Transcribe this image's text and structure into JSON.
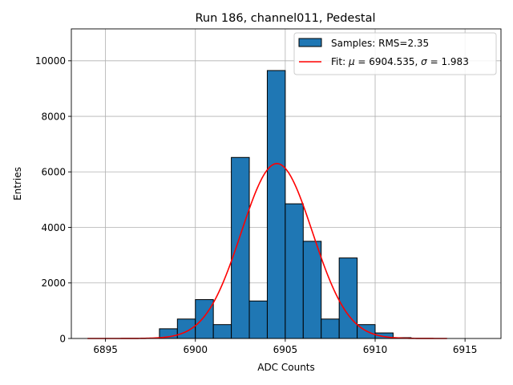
{
  "chart_data": {
    "type": "bar",
    "title": "Run 186, channel011, Pedestal",
    "xlabel": "ADC Counts",
    "ylabel": "Entries",
    "xlim": [
      6893.1,
      6917.0
    ],
    "ylim": [
      0,
      11150
    ],
    "xticks": [
      6895,
      6900,
      6905,
      6910,
      6915
    ],
    "yticks": [
      0,
      2000,
      4000,
      6000,
      8000,
      10000
    ],
    "grid": true,
    "legend_position": "top-right",
    "bin_width": 1,
    "histogram": {
      "name": "Samples: RMS=2.35",
      "color": "#1f77b4",
      "edgecolor": "#000000",
      "bins": [
        {
          "x": 6898,
          "value": 350
        },
        {
          "x": 6899,
          "value": 700
        },
        {
          "x": 6900,
          "value": 1400
        },
        {
          "x": 6901,
          "value": 500
        },
        {
          "x": 6902,
          "value": 6520
        },
        {
          "x": 6903,
          "value": 1350
        },
        {
          "x": 6904,
          "value": 9650
        },
        {
          "x": 6905,
          "value": 4850
        },
        {
          "x": 6906,
          "value": 3500
        },
        {
          "x": 6907,
          "value": 700
        },
        {
          "x": 6908,
          "value": 2900
        },
        {
          "x": 6909,
          "value": 500
        },
        {
          "x": 6910,
          "value": 200
        },
        {
          "x": 6911,
          "value": 30
        }
      ]
    },
    "fit": {
      "name_prefix": "Fit: ",
      "mu_symbol": "μ",
      "sigma_symbol": "σ",
      "mu": "6904.535",
      "sigma": "1.983",
      "amplitude": 6300,
      "x_range": [
        6894,
        6914
      ],
      "color": "#ff0000"
    }
  }
}
